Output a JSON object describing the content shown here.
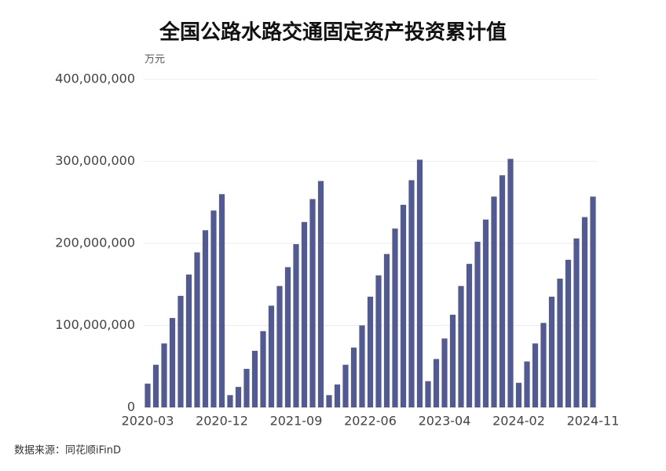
{
  "chart_data": {
    "type": "bar",
    "title": "全国公路水路交通固定资产投资累计值",
    "y_unit": "万元",
    "source": "数据来源：同花顺iFinD",
    "color": "#525a94",
    "categories": [
      "2020-03",
      null,
      null,
      null,
      null,
      null,
      null,
      null,
      null,
      "2020-12",
      null,
      null,
      null,
      null,
      null,
      null,
      null,
      null,
      "2021-09",
      null,
      null,
      null,
      null,
      null,
      null,
      null,
      null,
      "2022-06",
      null,
      null,
      null,
      null,
      null,
      null,
      null,
      null,
      "2023-04",
      null,
      null,
      null,
      null,
      null,
      null,
      null,
      null,
      "2024-02",
      null,
      null,
      null,
      null,
      null,
      null,
      null,
      null,
      "2024-11"
    ],
    "values": [
      29000000,
      52000000,
      78000000,
      109000000,
      136000000,
      162000000,
      189000000,
      216000000,
      240000000,
      260000000,
      15000000,
      25000000,
      47000000,
      69000000,
      93000000,
      124000000,
      148000000,
      171000000,
      199000000,
      226000000,
      254000000,
      276000000,
      15000000,
      28000000,
      52000000,
      73000000,
      100000000,
      135000000,
      161000000,
      187000000,
      218000000,
      247000000,
      277000000,
      302000000,
      32000000,
      59000000,
      84000000,
      113000000,
      148000000,
      175000000,
      202000000,
      229000000,
      257000000,
      283000000,
      303000000,
      30000000,
      56000000,
      78000000,
      103000000,
      135000000,
      157000000,
      180000000,
      206000000,
      232000000,
      257000000
    ],
    "ylim": [
      0,
      400000000
    ],
    "yticks": [
      0,
      {
        "value": 100000000,
        "label": "100,000,000"
      },
      {
        "value": 200000000,
        "label": "200,000,000"
      },
      {
        "value": 300000000,
        "label": "300,000,000"
      },
      {
        "value": 400000000,
        "label": "400,000,000"
      }
    ],
    "grid": true
  }
}
